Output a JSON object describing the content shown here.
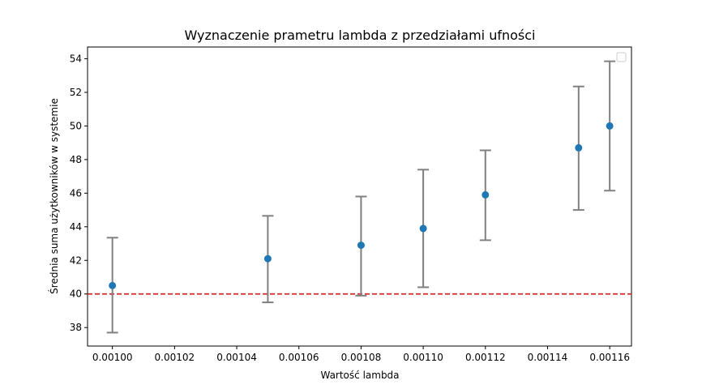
{
  "chart_data": {
    "type": "scatter",
    "title": "Wyznaczenie prametru lambda z przedziałami ufności",
    "xlabel": "Wartość lambda",
    "ylabel": "Średnia suma użytkowników w systemie",
    "xlim": [
      0.000992,
      0.001167
    ],
    "ylim": [
      36.9,
      54.7
    ],
    "x_ticks": [
      "0.00100",
      "0.00102",
      "0.00104",
      "0.00106",
      "0.00108",
      "0.00110",
      "0.00112",
      "0.00114",
      "0.00116"
    ],
    "x_tick_values": [
      0.001,
      0.00102,
      0.00104,
      0.00106,
      0.00108,
      0.0011,
      0.00112,
      0.00114,
      0.00116
    ],
    "y_ticks": [
      38,
      40,
      42,
      44,
      46,
      48,
      50,
      52,
      54
    ],
    "grid": false,
    "legend": {
      "placement": "top-right",
      "entries": []
    },
    "points": [
      {
        "x": 0.001,
        "y": 40.5,
        "ci_low": 37.7,
        "ci_high": 43.35
      },
      {
        "x": 0.00105,
        "y": 42.1,
        "ci_low": 39.5,
        "ci_high": 44.65
      },
      {
        "x": 0.00108,
        "y": 42.9,
        "ci_low": 39.9,
        "ci_high": 45.8
      },
      {
        "x": 0.0011,
        "y": 43.9,
        "ci_low": 40.4,
        "ci_high": 47.4
      },
      {
        "x": 0.00112,
        "y": 45.9,
        "ci_low": 43.2,
        "ci_high": 48.55
      },
      {
        "x": 0.00115,
        "y": 48.7,
        "ci_low": 45.0,
        "ci_high": 52.35
      },
      {
        "x": 0.00116,
        "y": 50.0,
        "ci_low": 46.15,
        "ci_high": 53.85
      }
    ],
    "reference_line": {
      "y": 40,
      "style": "dashed",
      "color": "#d62728"
    },
    "colors": {
      "marker": "#1f77b4",
      "errorbar": "#808080"
    }
  }
}
